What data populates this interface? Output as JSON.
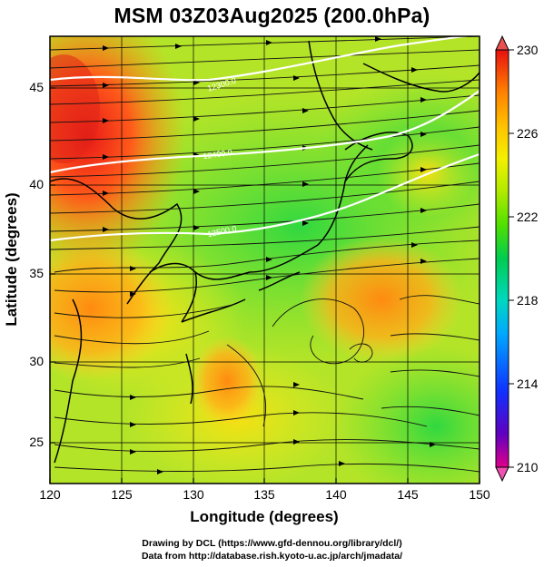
{
  "title": "MSM 03Z03Aug2025 (200.0hPa)",
  "x_axis": {
    "label": "Longitude (degrees)",
    "ticks": [
      "120",
      "125",
      "130",
      "135",
      "140",
      "145",
      "150"
    ],
    "range": [
      120,
      150
    ]
  },
  "y_axis": {
    "label": "Latitude  (degrees)",
    "ticks": [
      "25",
      "30",
      "35",
      "40",
      "45"
    ],
    "range": [
      22.4,
      47.6
    ]
  },
  "colorbar": {
    "labels": [
      "230",
      "226",
      "222",
      "218",
      "214",
      "210"
    ],
    "range": [
      210,
      230
    ],
    "colors": [
      "#e0008a",
      "#4000c0",
      "#0040ff",
      "#00a0ff",
      "#00d8c8",
      "#00d060",
      "#40e000",
      "#a0e800",
      "#f0f000",
      "#ffc000",
      "#ff8000",
      "#ff3020",
      "#e00000"
    ]
  },
  "contours": [
    {
      "label": "12300.0"
    },
    {
      "label": "12400.0"
    },
    {
      "label": "12500.0"
    }
  ],
  "footer": {
    "line1": "Drawing by DCL (https://www.gfd-dennou.org/library/dcl/)",
    "line2": "Data from http://database.rish.kyoto-u.ac.jp/arch/jmadata/"
  }
}
